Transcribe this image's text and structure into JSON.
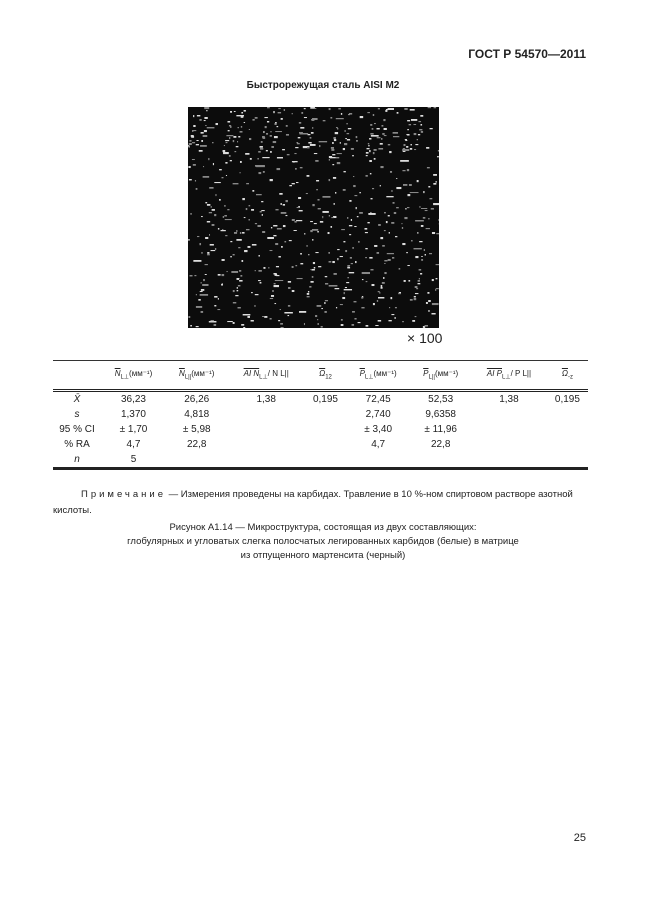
{
  "header": {
    "doc_code": "ГОСТ Р 54570—2011"
  },
  "figure": {
    "title": "Быстрорежущая сталь AISI M2",
    "magnification": "× 100"
  },
  "table": {
    "columns": [
      {
        "sym": "",
        "sub": "",
        "unit": ""
      },
      {
        "sym": "N",
        "sub": "L⊥",
        "unit": "(мм⁻¹)"
      },
      {
        "sym": "N",
        "sub": "L||",
        "unit": "(мм⁻¹)"
      },
      {
        "sym": "AI N",
        "sub": "L⊥",
        "unit": "/ N L||"
      },
      {
        "sym": "Ω",
        "sub": "12",
        "unit": ""
      },
      {
        "sym": "P",
        "sub": "L⊥",
        "unit": "(мм⁻¹)"
      },
      {
        "sym": "P",
        "sub": "L||",
        "unit": "(мм⁻¹)"
      },
      {
        "sym": "AI P",
        "sub": "L⊥",
        "unit": "/ P L||"
      },
      {
        "sym": "Ω",
        "sub": "-z",
        "unit": ""
      }
    ],
    "rows": [
      [
        "X̄",
        "36,23",
        "26,26",
        "1,38",
        "0,195",
        "72,45",
        "52,53",
        "1,38",
        "0,195"
      ],
      [
        "s",
        "1,370",
        "4,818",
        "",
        "",
        "2,740",
        "9,6358",
        "",
        ""
      ],
      [
        "95 % CI",
        "± 1,70",
        "± 5,98",
        "",
        "",
        "± 3,40",
        "± 11,96",
        "",
        ""
      ],
      [
        "% RA",
        "4,7",
        "22,8",
        "",
        "",
        "4,7",
        "22,8",
        "",
        ""
      ],
      [
        "n",
        "5",
        "",
        "",
        "",
        "",
        "",
        "",
        ""
      ]
    ]
  },
  "note": {
    "label": "Примечание",
    "text": " — Измерения проведены на карбидах. Травление в 10 %-ном спиртовом растворе азотной кислоты."
  },
  "caption": [
    "Рисунок А1.14 — Микроструктура, состоящая из двух составляющих:",
    "глобулярных и угловатых слегка полосчатых легированных карбидов (белые) в матрице",
    "из отпущенного мартенсита (черный)"
  ],
  "page_number": "25"
}
